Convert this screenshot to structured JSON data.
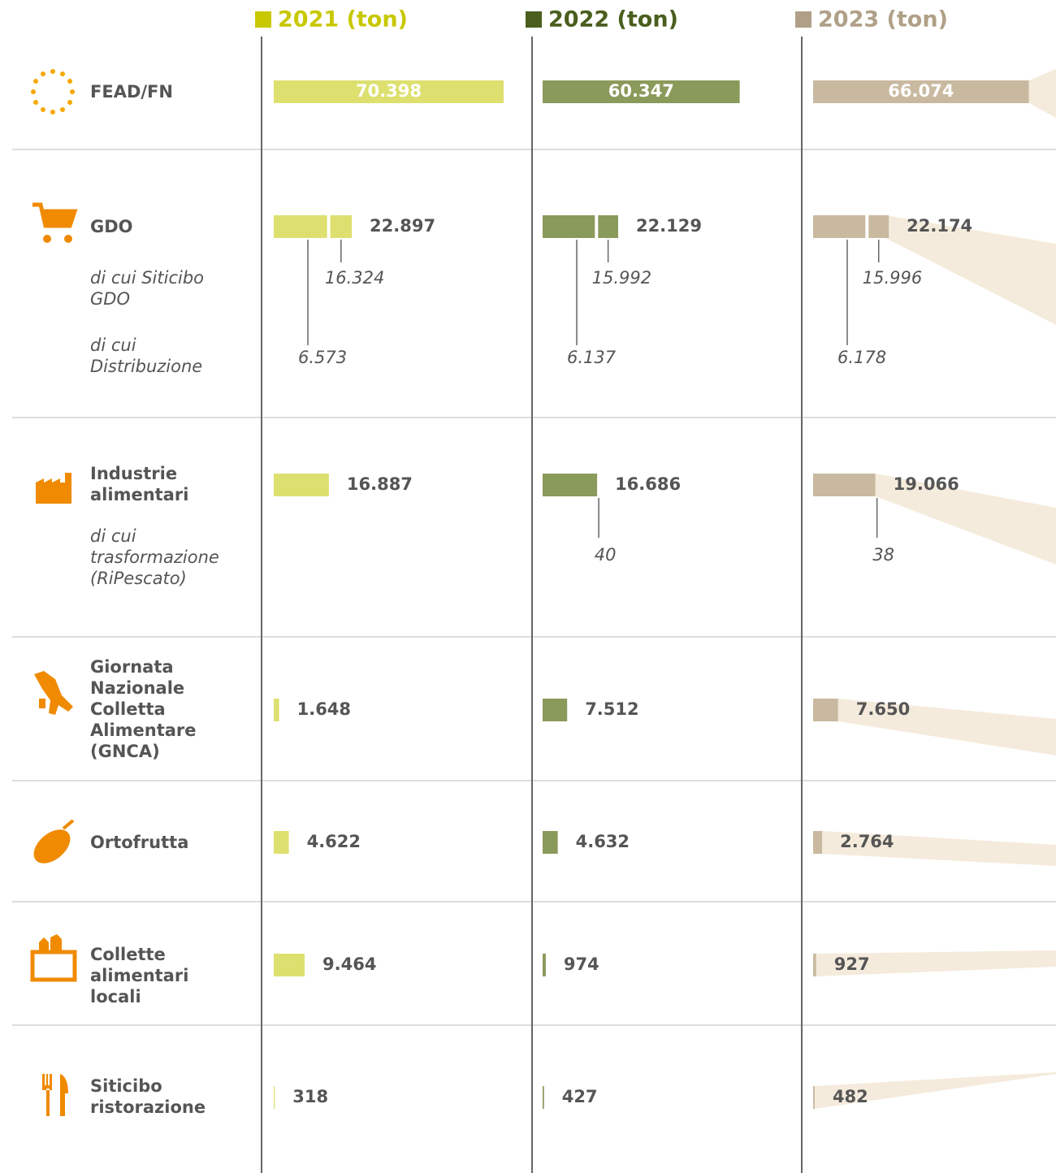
{
  "chart_data": {
    "type": "bar",
    "categories": [
      "FEAD/FN",
      "GDO",
      "Industrie alimentari",
      "Giornata Nazionale Colletta Alimentare (GNCA)",
      "Ortofrutta",
      "Collette alimentari locali",
      "Siticibo ristorazione"
    ],
    "subcategories": [
      "di cui Siticibo GDO",
      "di cui Distribuzione",
      "di cui trasformazione (RiPescato)"
    ],
    "series": [
      {
        "name": "2021 (ton)",
        "color": "#dde06e",
        "header_color": "#c8c800",
        "values": [
          70398,
          22897,
          16887,
          1648,
          4622,
          9464,
          318
        ],
        "value_labels": [
          "70.398",
          "22.897",
          "16.887",
          "1.648",
          "4.622",
          "9.464",
          "318"
        ],
        "siticibo_gdo": {
          "value": 16324,
          "label": "16.324"
        },
        "distribuzione": {
          "value": 6573,
          "label": "6.573"
        }
      },
      {
        "name": "2022 (ton)",
        "color": "#8a9a5b",
        "header_color": "#4a5e1e",
        "values": [
          60347,
          22129,
          16686,
          7512,
          4632,
          974,
          427
        ],
        "value_labels": [
          "60.347",
          "22.129",
          "16.686",
          "7.512",
          "4.632",
          "974",
          "427"
        ],
        "siticibo_gdo": {
          "value": 15992,
          "label": "15.992"
        },
        "distribuzione": {
          "value": 6137,
          "label": "6.137"
        },
        "ripescato": {
          "value": 40,
          "label": "40"
        }
      },
      {
        "name": "2023 (ton)",
        "color": "#c9b9a0",
        "header_color": "#b0a088",
        "values": [
          66074,
          22174,
          19066,
          7650,
          2764,
          927,
          482
        ],
        "value_labels": [
          "66.074",
          "22.174",
          "19.066",
          "7.650",
          "2.764",
          "927",
          "482"
        ],
        "siticibo_gdo": {
          "value": 15996,
          "label": "15.996"
        },
        "distribuzione": {
          "value": 6178,
          "label": "6.178"
        },
        "ripescato": {
          "value": 38,
          "label": "38"
        }
      }
    ]
  }
}
